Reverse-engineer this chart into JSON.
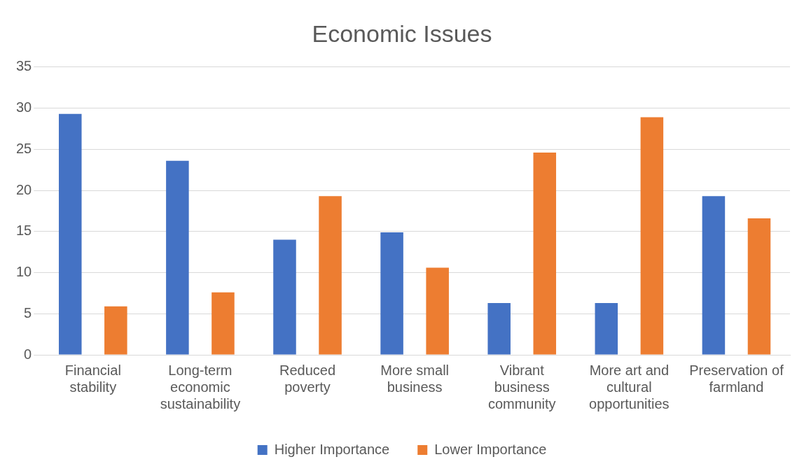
{
  "chart_data": {
    "type": "bar",
    "title": "Economic Issues",
    "categories": [
      "Financial stability",
      "Long-term economic sustainability",
      "Reduced poverty",
      "More small business",
      "Vibrant business community",
      "More art and cultural opportunities",
      "Preservation of farmland"
    ],
    "series": [
      {
        "name": "Higher Importance",
        "color": "#4472c4",
        "values": [
          29.3,
          23.6,
          14.0,
          14.9,
          6.3,
          6.3,
          19.3
        ]
      },
      {
        "name": "Lower Importance",
        "color": "#ed7d31",
        "values": [
          5.9,
          7.6,
          19.3,
          10.6,
          24.6,
          28.9,
          16.6
        ]
      }
    ],
    "ylim": [
      0,
      35
    ],
    "yticks": [
      0,
      5,
      10,
      15,
      20,
      25,
      30,
      35
    ],
    "grid": "y",
    "legend": "bottom"
  }
}
